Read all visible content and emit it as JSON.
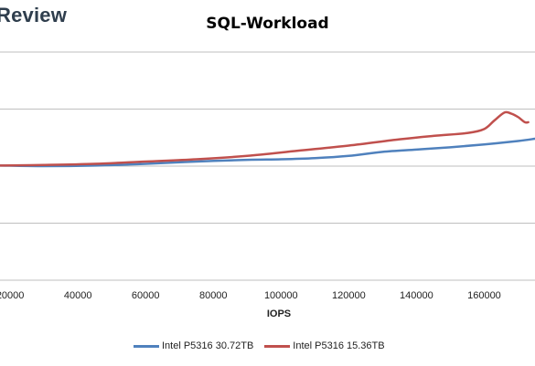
{
  "watermark": "Review",
  "chart_data": {
    "type": "line",
    "title": "SQL-Workload",
    "xlabel": "IOPS",
    "ylabel": "",
    "xlim": [
      17000,
      175000
    ],
    "ylim": [
      0,
      4
    ],
    "x_ticks": [
      20000,
      40000,
      60000,
      80000,
      100000,
      120000,
      140000,
      160000
    ],
    "x_tick_labels": [
      "20000",
      "40000",
      "60000",
      "80000",
      "100000",
      "120000",
      "140000",
      "160000"
    ],
    "grid": true,
    "legend": "bottom",
    "series": [
      {
        "name": "Intel P5316 30.72TB",
        "color": "#4f81bd",
        "x": [
          17000,
          30000,
          45000,
          60000,
          75000,
          90000,
          100000,
          110000,
          120000,
          130000,
          140000,
          150000,
          160000,
          170000,
          175000
        ],
        "y": [
          2.01,
          2.0,
          2.01,
          2.04,
          2.08,
          2.11,
          2.12,
          2.14,
          2.18,
          2.25,
          2.29,
          2.33,
          2.38,
          2.44,
          2.48
        ]
      },
      {
        "name": "Intel P5316 15.36TB",
        "color": "#c0504d",
        "x": [
          17000,
          30000,
          45000,
          60000,
          75000,
          90000,
          105000,
          120000,
          135000,
          145000,
          155000,
          160000,
          163000,
          166000,
          168000,
          170000,
          172000,
          173000
        ],
        "y": [
          2.01,
          2.02,
          2.04,
          2.08,
          2.12,
          2.18,
          2.27,
          2.36,
          2.47,
          2.53,
          2.58,
          2.65,
          2.8,
          2.94,
          2.92,
          2.86,
          2.77,
          2.77
        ]
      }
    ]
  }
}
